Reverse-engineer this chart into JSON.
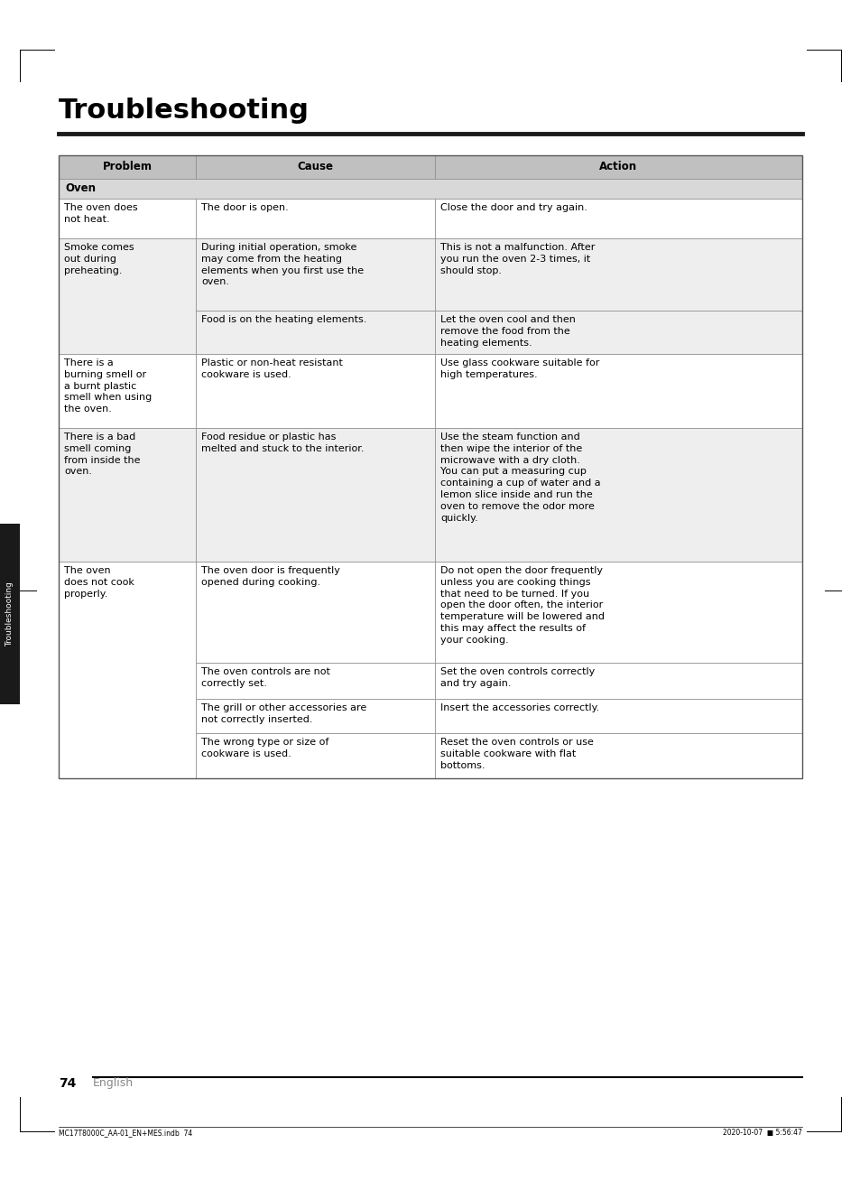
{
  "title": "Troubleshooting",
  "page_num": "74",
  "page_lang": "English",
  "footer_left": "MC17T8000C_AA-01_EN+MES.indb  74",
  "footer_right": "2020-10-07  ■ 5:56:47",
  "sidebar_text": "Troubleshooting",
  "col_headers": [
    "Problem",
    "Cause",
    "Action"
  ],
  "section_header": "Oven",
  "header_bg": "#c0c0c0",
  "section_bg": "#d8d8d8",
  "bg_white": "#ffffff",
  "bg_gray": "#eeeeee",
  "rows": [
    {
      "problem": "The oven does\nnot heat.",
      "cause": "The door is open.",
      "action": "Close the door and try again.",
      "bg": "#ffffff",
      "group_start": true,
      "group_id": 0
    },
    {
      "problem": "Smoke comes\nout during\npreheating.",
      "cause": "During initial operation, smoke\nmay come from the heating\nelements when you first use the\noven.",
      "action": "This is not a malfunction. After\nyou run the oven 2-3 times, it\nshould stop.",
      "bg": "#eeeeee",
      "group_start": true,
      "group_id": 1
    },
    {
      "problem": "",
      "cause": "Food is on the heating elements.",
      "action": "Let the oven cool and then\nremove the food from the\nheating elements.",
      "bg": "#eeeeee",
      "group_start": false,
      "group_id": 1
    },
    {
      "problem": "There is a\nburning smell or\na burnt plastic\nsmell when using\nthe oven.",
      "cause": "Plastic or non-heat resistant\ncookware is used.",
      "action": "Use glass cookware suitable for\nhigh temperatures.",
      "bg": "#ffffff",
      "group_start": true,
      "group_id": 2
    },
    {
      "problem": "There is a bad\nsmell coming\nfrom inside the\noven.",
      "cause": "Food residue or plastic has\nmelted and stuck to the interior.",
      "action": "Use the steam function and\nthen wipe the interior of the\nmicrowave with a dry cloth.\nYou can put a measuring cup\ncontaining a cup of water and a\nlemon slice inside and run the\noven to remove the odor more\nquickly.",
      "bg": "#eeeeee",
      "group_start": true,
      "group_id": 3
    },
    {
      "problem": "The oven\ndoes not cook\nproperly.",
      "cause": "The oven door is frequently\nopened during cooking.",
      "action": "Do not open the door frequently\nunless you are cooking things\nthat need to be turned. If you\nopen the door often, the interior\ntemperature will be lowered and\nthis may affect the results of\nyour cooking.",
      "bg": "#ffffff",
      "group_start": true,
      "group_id": 4
    },
    {
      "problem": "",
      "cause": "The oven controls are not\ncorrectly set.",
      "action": "Set the oven controls correctly\nand try again.",
      "bg": "#ffffff",
      "group_start": false,
      "group_id": 4
    },
    {
      "problem": "",
      "cause": "The grill or other accessories are\nnot correctly inserted.",
      "action": "Insert the accessories correctly.",
      "bg": "#ffffff",
      "group_start": false,
      "group_id": 4
    },
    {
      "problem": "",
      "cause": "The wrong type or size of\ncookware is used.",
      "action": "Reset the oven controls or use\nsuitable cookware with flat\nbottoms.",
      "bg": "#ffffff",
      "group_start": false,
      "group_id": 4
    }
  ]
}
